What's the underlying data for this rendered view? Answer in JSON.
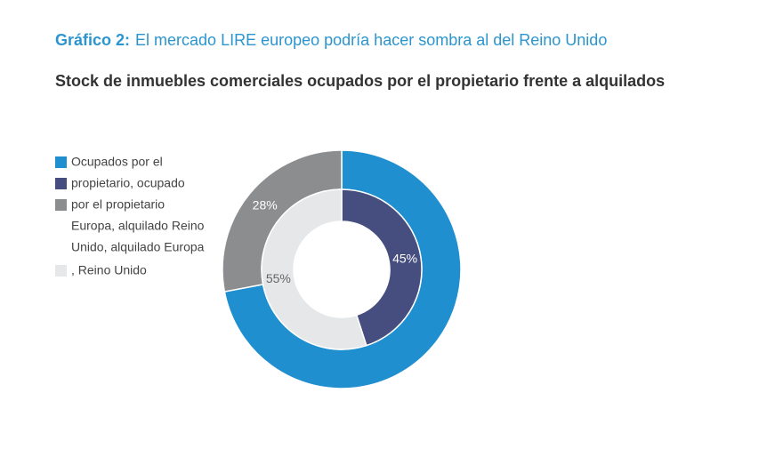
{
  "chart_data": {
    "type": "nested-donut",
    "title_prefix": "Gráfico 2:",
    "title": "El mercado LIRE europeo podría hacer sombra al del Reino Unido",
    "subtitle": "Stock de inmuebles comerciales ocupados por el propietario frente a alquilados",
    "rings": [
      {
        "values": [
          72,
          28
        ],
        "colors": [
          "#1f8fd0",
          "#8c8d8f"
        ],
        "value_labels": [
          null,
          "28%"
        ]
      },
      {
        "values": [
          45,
          55
        ],
        "colors": [
          "#454e7e",
          "#e6e7e9"
        ],
        "value_labels": [
          "45%",
          "55%"
        ]
      }
    ],
    "legend": [
      {
        "text": "Ocupados por el",
        "color": "#1f8fd0"
      },
      {
        "text": "propietario, ocupado",
        "color": "#454e7e"
      },
      {
        "text": "por el propietario",
        "color": "#8c8d8f"
      },
      {
        "text": "Europa, alquilado Reino"
      },
      {
        "text": "Unido, alquilado Europa"
      },
      {
        "text": ", Reino Unido",
        "color": "#e6e7e9"
      }
    ]
  }
}
